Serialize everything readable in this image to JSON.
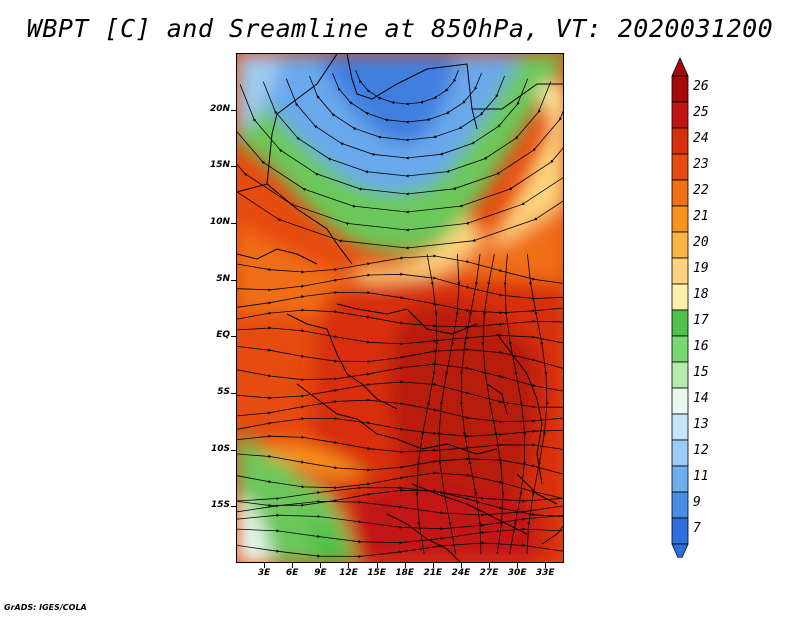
{
  "title": "WBPT [C] and Sreamline at 850hPa, VT: 2020031200",
  "footer": "GrADS: IGES/COLA",
  "map": {
    "lat_range": [
      -20,
      25
    ],
    "lon_range": [
      0,
      35
    ],
    "y_ticks": [
      {
        "label": "20N",
        "lat": 20
      },
      {
        "label": "15N",
        "lat": 15
      },
      {
        "label": "10N",
        "lat": 10
      },
      {
        "label": "5N",
        "lat": 5
      },
      {
        "label": "EQ",
        "lat": 0
      },
      {
        "label": "5S",
        "lat": -5
      },
      {
        "label": "10S",
        "lat": -10
      },
      {
        "label": "15S",
        "lat": -15
      }
    ],
    "x_ticks": [
      {
        "label": "3E",
        "lon": 3
      },
      {
        "label": "6E",
        "lon": 6
      },
      {
        "label": "9E",
        "lon": 9
      },
      {
        "label": "12E",
        "lon": 12
      },
      {
        "label": "15E",
        "lon": 15
      },
      {
        "label": "18E",
        "lon": 18
      },
      {
        "label": "21E",
        "lon": 21
      },
      {
        "label": "24E",
        "lon": 24
      },
      {
        "label": "27E",
        "lon": 27
      },
      {
        "label": "30E",
        "lon": 30
      },
      {
        "label": "33E",
        "lon": 33
      }
    ]
  },
  "colorbar": {
    "labels": [
      "26",
      "25",
      "24",
      "23",
      "22",
      "21",
      "20",
      "19",
      "18",
      "17",
      "16",
      "15",
      "14",
      "13",
      "12",
      "11",
      "9",
      "7"
    ],
    "colors": [
      "#a50a0a",
      "#c31414",
      "#d82f0f",
      "#e64b0f",
      "#f06e14",
      "#f7941e",
      "#f9b545",
      "#fcd47e",
      "#fdf0a8",
      "#4ec24a",
      "#7ad872",
      "#b5ecae",
      "#e8f8f0",
      "#c6e4fa",
      "#9ccdf5",
      "#6eb0ee",
      "#4a8ee6",
      "#2e6fe0"
    ],
    "top_arrow_color": "#a50a0a",
    "bottom_arrow_color": "#2e6fe0"
  }
}
